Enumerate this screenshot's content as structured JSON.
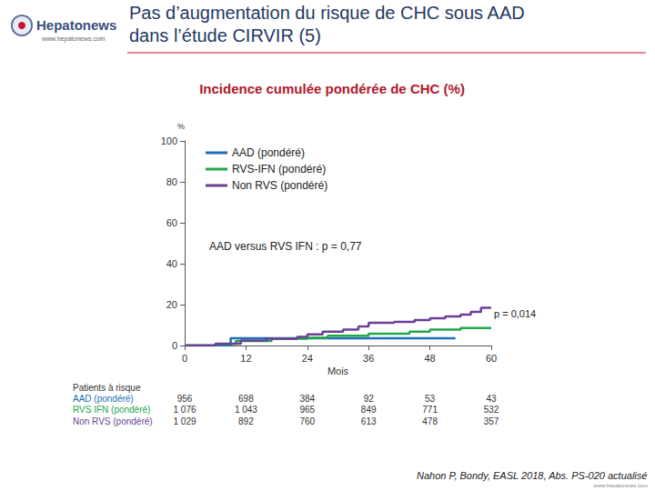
{
  "header": {
    "logo": "Hepatonews",
    "url": "www.hepatonews.com",
    "title_lines": [
      "Pas d’augmentation du risque de CHC sous AAD",
      "dans l’étude CIRVIR (5)"
    ]
  },
  "chart_data": {
    "type": "line",
    "title": "Incidence cumulée pondérée de CHC (%)",
    "ylabel": "%",
    "xlabel": "Mois",
    "xlim": [
      0,
      60
    ],
    "xticks": [
      0,
      12,
      24,
      36,
      48,
      60
    ],
    "ylim": [
      0,
      100
    ],
    "yticks": [
      0,
      20,
      40,
      60,
      80,
      100
    ],
    "grid": false,
    "legend": "upper left",
    "series": [
      {
        "name": "AAD (pondéré)",
        "color": "#1f6fb4",
        "x": [
          0,
          9,
          53
        ],
        "values": [
          0,
          3.6,
          3.6
        ]
      },
      {
        "name": "RVS-IFN (pondéré)",
        "color": "#21a84a",
        "x": [
          0,
          6,
          10,
          17,
          24,
          28,
          36,
          44,
          48,
          54,
          60
        ],
        "values": [
          0,
          0.8,
          2.2,
          3.3,
          3.8,
          4.8,
          5.8,
          6.8,
          7.8,
          8.6,
          8.6
        ]
      },
      {
        "name": "Non RVS (pondéré)",
        "color": "#6b3f98",
        "x": [
          0,
          6,
          11,
          16,
          22,
          24,
          27,
          31,
          34,
          36,
          41,
          45,
          48,
          51,
          54,
          56,
          58,
          60
        ],
        "values": [
          0,
          0.9,
          2.4,
          3.3,
          4.2,
          5.5,
          6.8,
          7.8,
          9.3,
          11.1,
          11.6,
          12.4,
          13.3,
          14.2,
          15.1,
          16.4,
          18.4,
          18.4
        ]
      }
    ],
    "annotations": [
      "AAD versus RVS IFN : p = 0,77",
      "p = 0,014"
    ]
  },
  "risk_table": {
    "title": "Patients à risque",
    "rows": [
      {
        "label": "AAD (pondéré)",
        "color": "#1f6fb4",
        "values": [
          "956",
          "698",
          "384",
          "92",
          "53",
          "43"
        ]
      },
      {
        "label": "RVS IFN (pondéré)",
        "color": "#21a84a",
        "values": [
          "1 076",
          "1 043",
          "965",
          "849",
          "771",
          "532"
        ]
      },
      {
        "label": "Non RVS (pondéré)",
        "color": "#6b3f98",
        "values": [
          "1 029",
          "892",
          "760",
          "613",
          "478",
          "357"
        ]
      }
    ]
  },
  "source": "Nahon P, Bondy, EASL 2018, Abs. PS-020 actualisé"
}
